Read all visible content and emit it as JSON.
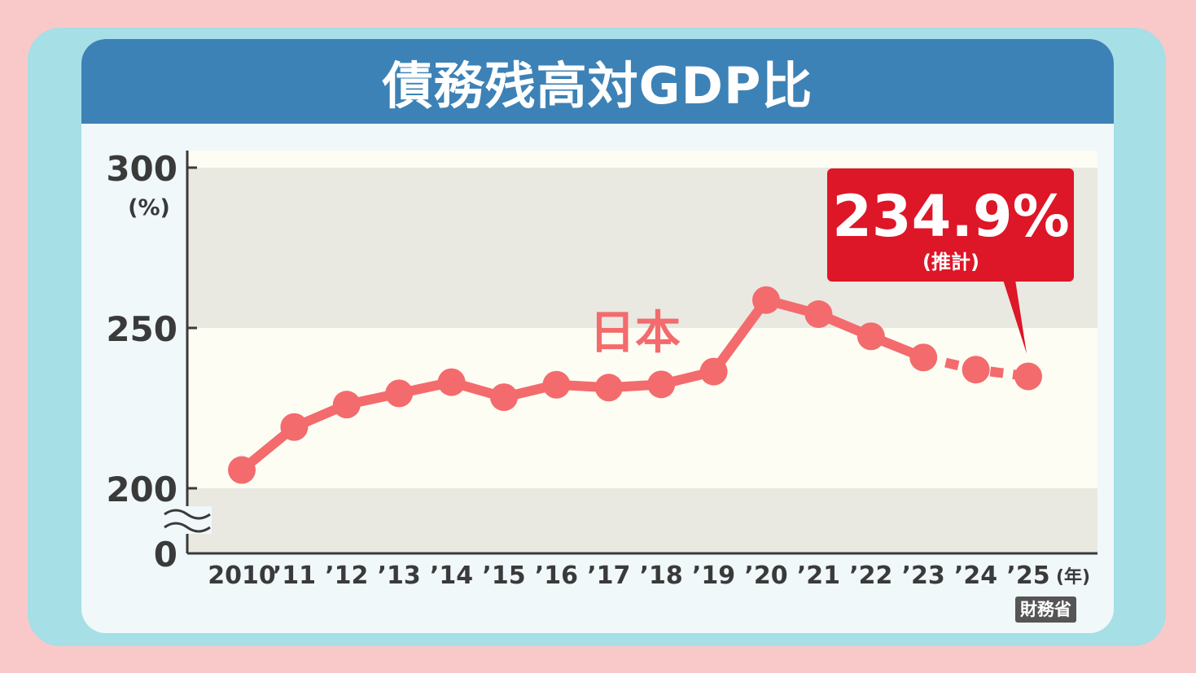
{
  "header": {
    "title": "債務残高対GDP比"
  },
  "chart_data": {
    "type": "line",
    "title": "債務残高対GDP比",
    "ylabel": "(%)",
    "xlabel": "(年)",
    "ylim": [
      200,
      300
    ],
    "y_ticks": [
      "300",
      "250",
      "200",
      "0"
    ],
    "axis_break": true,
    "categories": [
      "2010",
      "’11",
      "’12",
      "’13",
      "’14",
      "’15",
      "’16",
      "’17",
      "’18",
      "’19",
      "’20",
      "’21",
      "’22",
      "’23",
      "’24",
      "’25"
    ],
    "series": [
      {
        "name": "日本",
        "color": "#f36b6d",
        "values": [
          205.7,
          219.1,
          226.1,
          229.6,
          233.1,
          228.4,
          232.3,
          231.4,
          232.4,
          236.4,
          258.7,
          254.3,
          247.4,
          240.8,
          237.0,
          234.9
        ],
        "dashed_from_index": 13
      }
    ],
    "annotation": {
      "value_label": "234.9%",
      "note": "(推計)",
      "target_index": 15,
      "color": "#dd1628"
    },
    "band_colors": [
      "#e9e8e1",
      "#fdfdf4"
    ],
    "grid": false
  },
  "source": {
    "label": "財務省"
  }
}
